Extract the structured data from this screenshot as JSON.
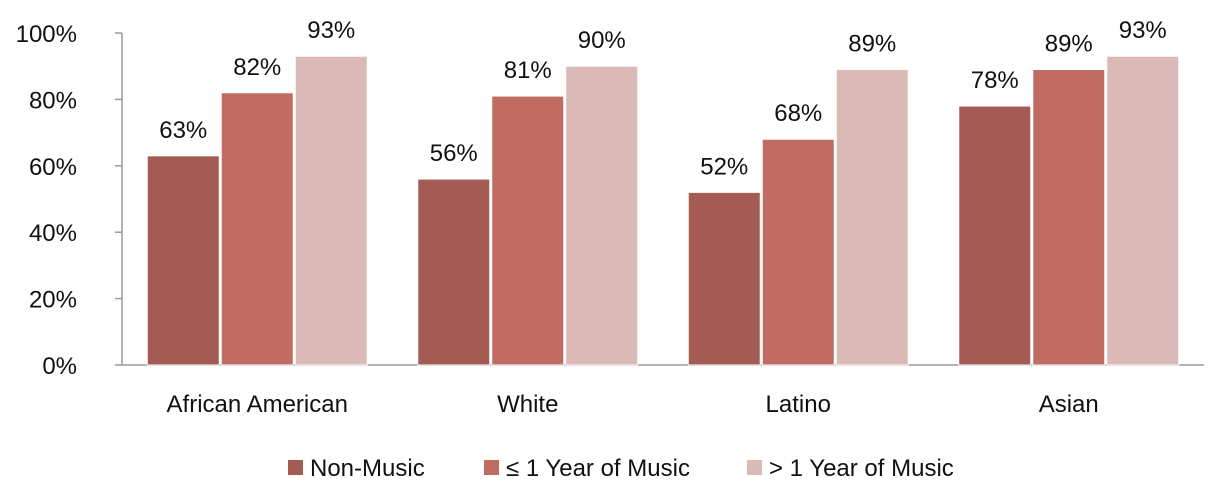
{
  "chart_data": {
    "type": "bar",
    "title": "",
    "xlabel": "",
    "ylabel": "",
    "categories": [
      "African American",
      "White",
      "Latino",
      "Asian"
    ],
    "series": [
      {
        "name": "Non-Music",
        "values": [
          63,
          56,
          52,
          78
        ],
        "color": "#A45B53"
      },
      {
        "name": "≤ 1 Year of Music",
        "values": [
          82,
          81,
          68,
          89
        ],
        "color": "#C06C62"
      },
      {
        "name": "> 1 Year of Music",
        "values": [
          93,
          90,
          89,
          93
        ],
        "color": "#DBB9B6"
      }
    ],
    "value_format": "percent",
    "data_labels": [
      [
        "63%",
        "82%",
        "93%"
      ],
      [
        "56%",
        "81%",
        "90%"
      ],
      [
        "52%",
        "68%",
        "89%"
      ],
      [
        "78%",
        "89%",
        "93%"
      ]
    ],
    "ylim": [
      0,
      100
    ],
    "yticks": [
      0,
      20,
      40,
      60,
      80,
      100
    ],
    "ytick_labels": [
      "0%",
      "20%",
      "40%",
      "60%",
      "80%",
      "100%"
    ],
    "grid": false,
    "legend_position": "bottom"
  }
}
